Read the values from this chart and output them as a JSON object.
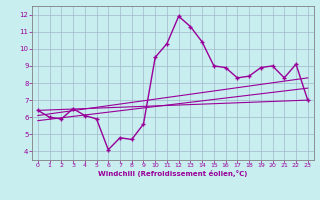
{
  "xlabel": "Windchill (Refroidissement éolien,°C)",
  "bg_color": "#c8eef0",
  "line_color": "#990099",
  "grid_color": "#b8d8e0",
  "xlim": [
    -0.5,
    23.5
  ],
  "ylim": [
    3.5,
    12.5
  ],
  "xticks": [
    0,
    1,
    2,
    3,
    4,
    5,
    6,
    7,
    8,
    9,
    10,
    11,
    12,
    13,
    14,
    15,
    16,
    17,
    18,
    19,
    20,
    21,
    22,
    23
  ],
  "yticks": [
    4,
    5,
    6,
    7,
    8,
    9,
    10,
    11,
    12
  ],
  "main_x": [
    0,
    1,
    2,
    3,
    4,
    5,
    6,
    7,
    8,
    9,
    10,
    11,
    12,
    13,
    14,
    15,
    16,
    17,
    18,
    19,
    20,
    21,
    22,
    23
  ],
  "main_y": [
    6.4,
    6.0,
    5.9,
    6.5,
    6.1,
    5.9,
    4.1,
    4.8,
    4.7,
    5.6,
    9.5,
    10.3,
    11.9,
    11.3,
    10.4,
    9.0,
    8.9,
    8.3,
    8.4,
    8.9,
    9.0,
    8.3,
    9.1,
    7.0
  ],
  "line1_x": [
    0,
    23
  ],
  "line1_y": [
    6.4,
    7.0
  ],
  "line2_x": [
    0,
    23
  ],
  "line2_y": [
    6.1,
    8.3
  ],
  "line3_x": [
    0,
    23
  ],
  "line3_y": [
    5.8,
    7.7
  ]
}
